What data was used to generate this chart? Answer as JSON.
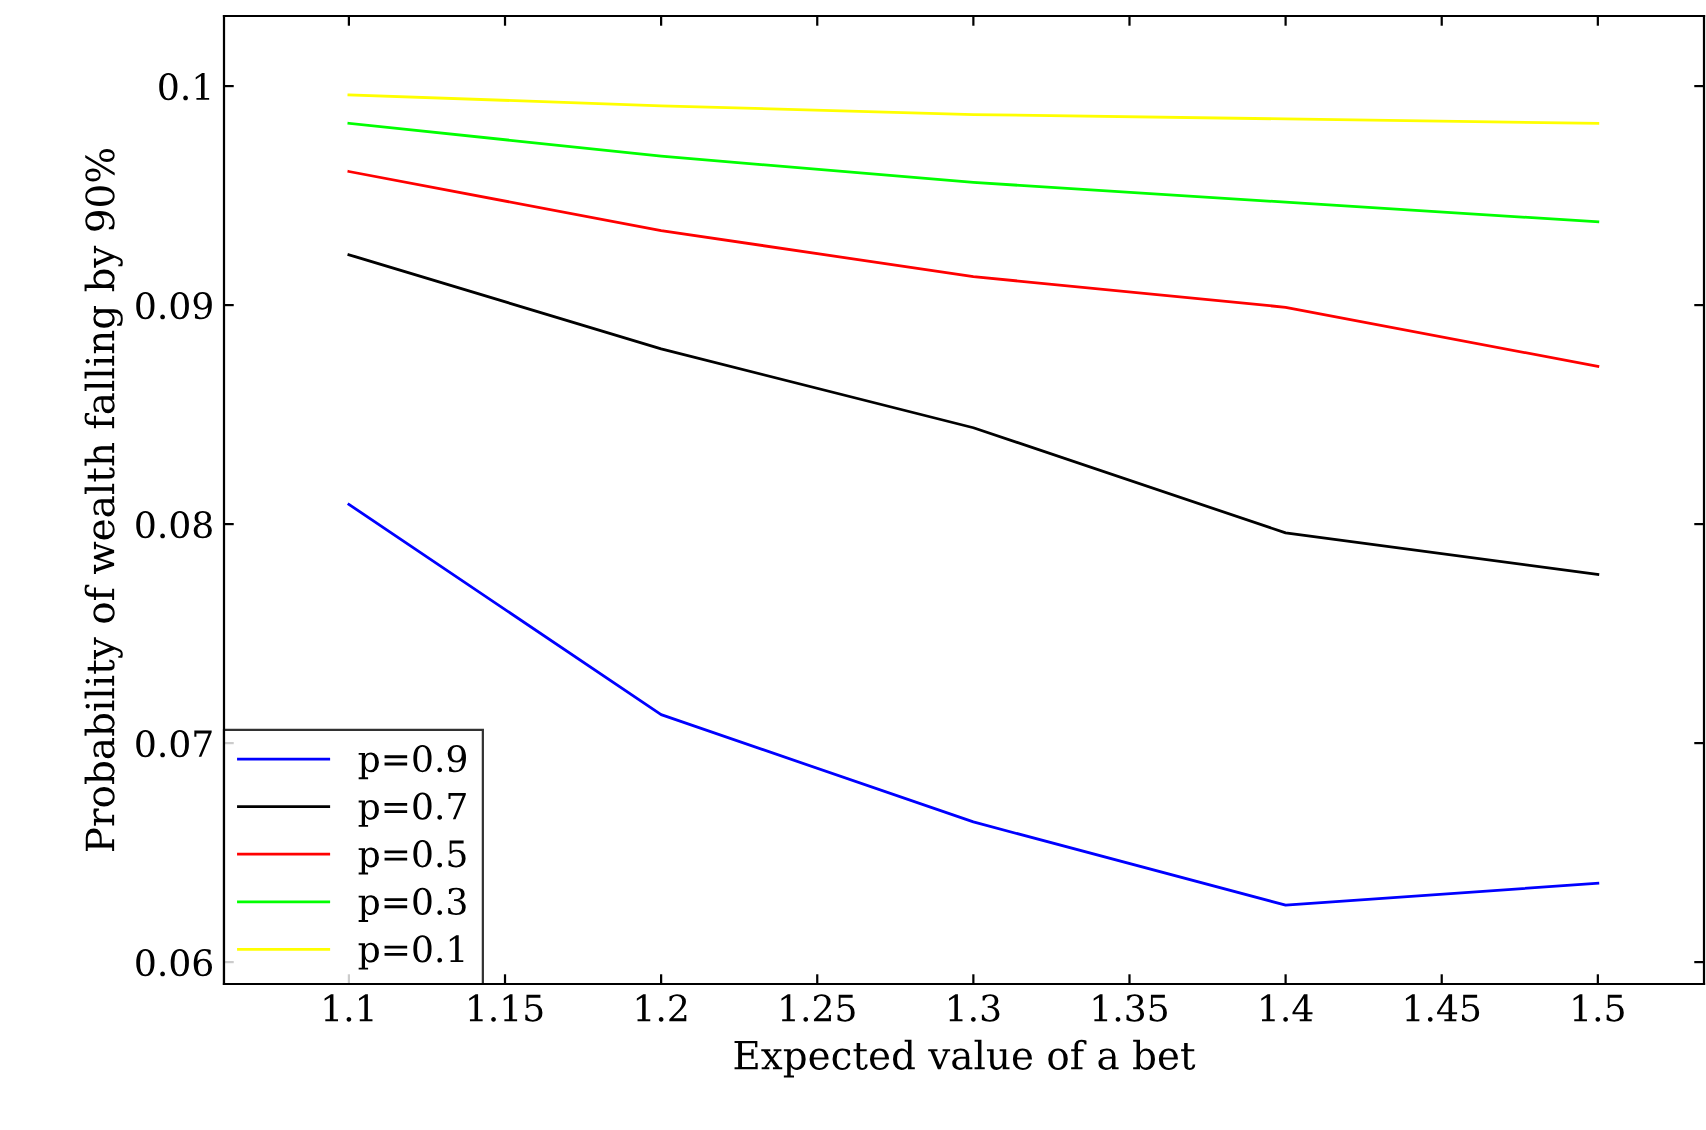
{
  "chart_data": {
    "type": "line",
    "xlabel": "Expected value of a bet",
    "ylabel": "Probability of wealth falling by 90%",
    "x": [
      1.1,
      1.2,
      1.3,
      1.4,
      1.5
    ],
    "series": [
      {
        "name": "p=0.9",
        "color": "#0000ff",
        "values": [
          0.0809,
          0.0713,
          0.0664,
          0.0626,
          0.0636
        ]
      },
      {
        "name": "p=0.7",
        "color": "#000000",
        "values": [
          0.0923,
          0.088,
          0.0844,
          0.0796,
          0.0777
        ]
      },
      {
        "name": "p=0.5",
        "color": "#ff0000",
        "values": [
          0.0961,
          0.0934,
          0.0913,
          0.0899,
          0.0872
        ]
      },
      {
        "name": "p=0.3",
        "color": "#00ff00",
        "values": [
          0.0983,
          0.0968,
          0.0956,
          0.0947,
          0.0938
        ]
      },
      {
        "name": "p=0.1",
        "color": "#ffff00",
        "values": [
          0.0996,
          0.0991,
          0.0987,
          0.0985,
          0.0983
        ]
      }
    ],
    "xlim": [
      1.06,
      1.534
    ],
    "xticks": [
      1.1,
      1.15,
      1.2,
      1.25,
      1.3,
      1.35,
      1.4,
      1.45,
      1.5
    ],
    "ylim": [
      0.059,
      0.1032
    ],
    "yticks": [
      0.06,
      0.07,
      0.08,
      0.09,
      0.1
    ],
    "grid": false,
    "legend": "bottom left",
    "marker": "none",
    "line_style": "solid"
  }
}
